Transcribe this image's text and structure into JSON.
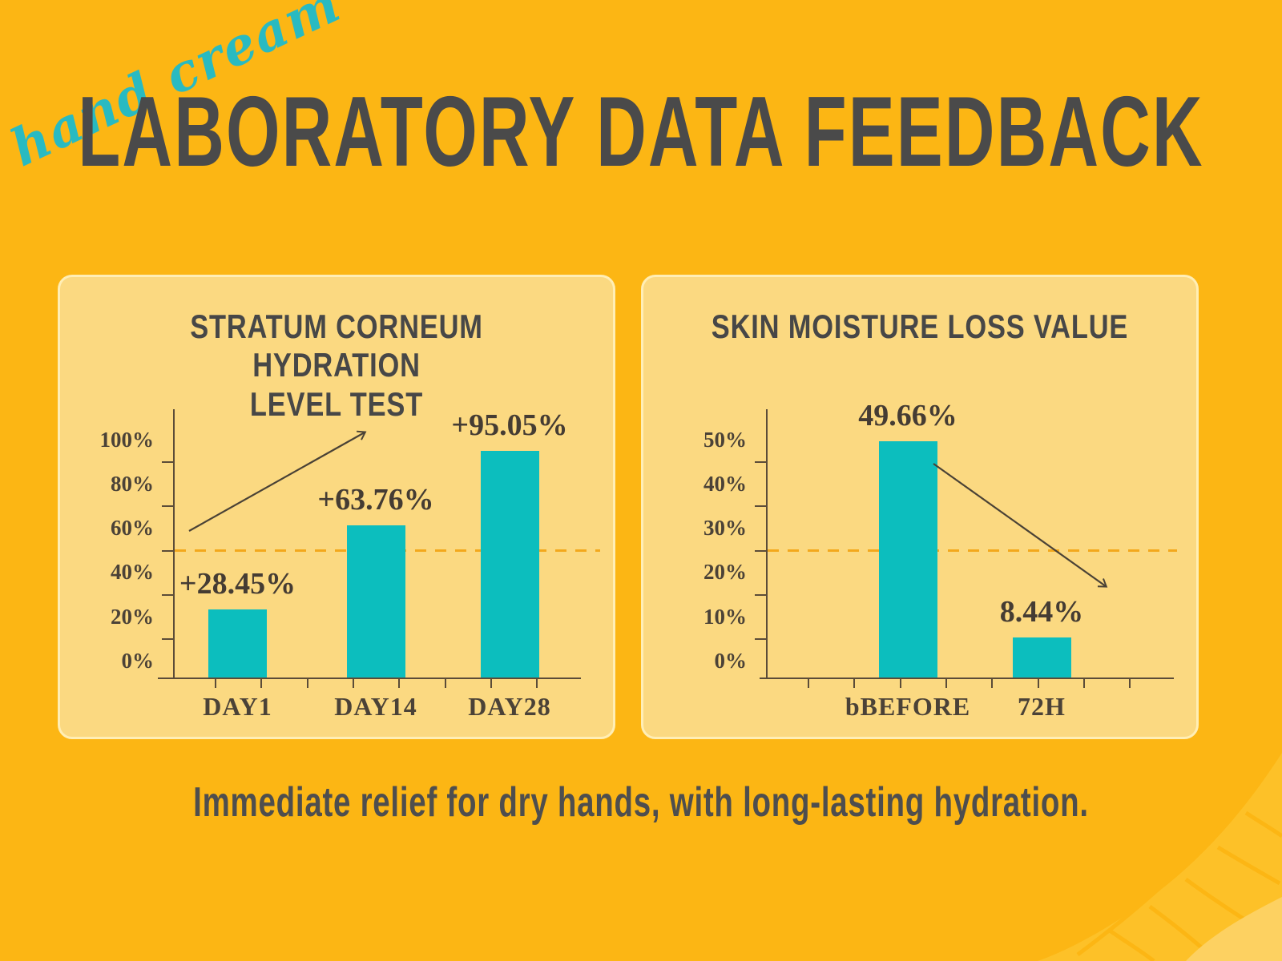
{
  "page": {
    "background_color": "#fcb614",
    "card_color": "#fbd981",
    "card_border_color": "#ffeeb5",
    "bar_teal": "#0cbebe",
    "title_color": "#4a4a4a",
    "serif_text_color": "#4b4237",
    "dashed_line_color": "#f3a81c",
    "script_color": "#29bac1"
  },
  "header": {
    "script_text": "hand cream",
    "title": "LABORATORY DATA FEEDBACK"
  },
  "chart_data": [
    {
      "type": "bar",
      "title": "STRATUM CORNEUM HYDRATION LEVEL TEST",
      "title_lines": [
        "STRATUM CORNEUM HYDRATION",
        "LEVEL TEST"
      ],
      "categories": [
        "DAY1",
        "DAY14",
        "DAY28"
      ],
      "values": [
        28.45,
        63.76,
        95.05
      ],
      "value_labels": [
        "+28.45%",
        "+63.76%",
        "+95.05%"
      ],
      "y_tick_labels": [
        "100%",
        "80%",
        "60%",
        "40%",
        "20%",
        "0%"
      ],
      "ylim": [
        0,
        100
      ],
      "reference_line_value": 50,
      "trend_arrow": "up",
      "bar_color": "#0cbebe",
      "grid": false,
      "legend": false
    },
    {
      "type": "bar",
      "title": "SKIN MOISTURE LOSS VALUE",
      "title_lines": [
        "SKIN MOISTURE LOSS VALUE"
      ],
      "categories": [
        "bBEFORE",
        "72H"
      ],
      "values": [
        49.66,
        8.44
      ],
      "value_labels": [
        "49.66%",
        "8.44%"
      ],
      "y_tick_labels": [
        "50%",
        "40%",
        "30%",
        "20%",
        "10%",
        "0%"
      ],
      "ylim": [
        0,
        50
      ],
      "reference_line_value": 25,
      "trend_arrow": "down",
      "bar_color": "#0cbebe",
      "grid": false,
      "legend": false
    }
  ],
  "footer": {
    "tagline": "Immediate relief for dry hands, with long-lasting hydration."
  }
}
